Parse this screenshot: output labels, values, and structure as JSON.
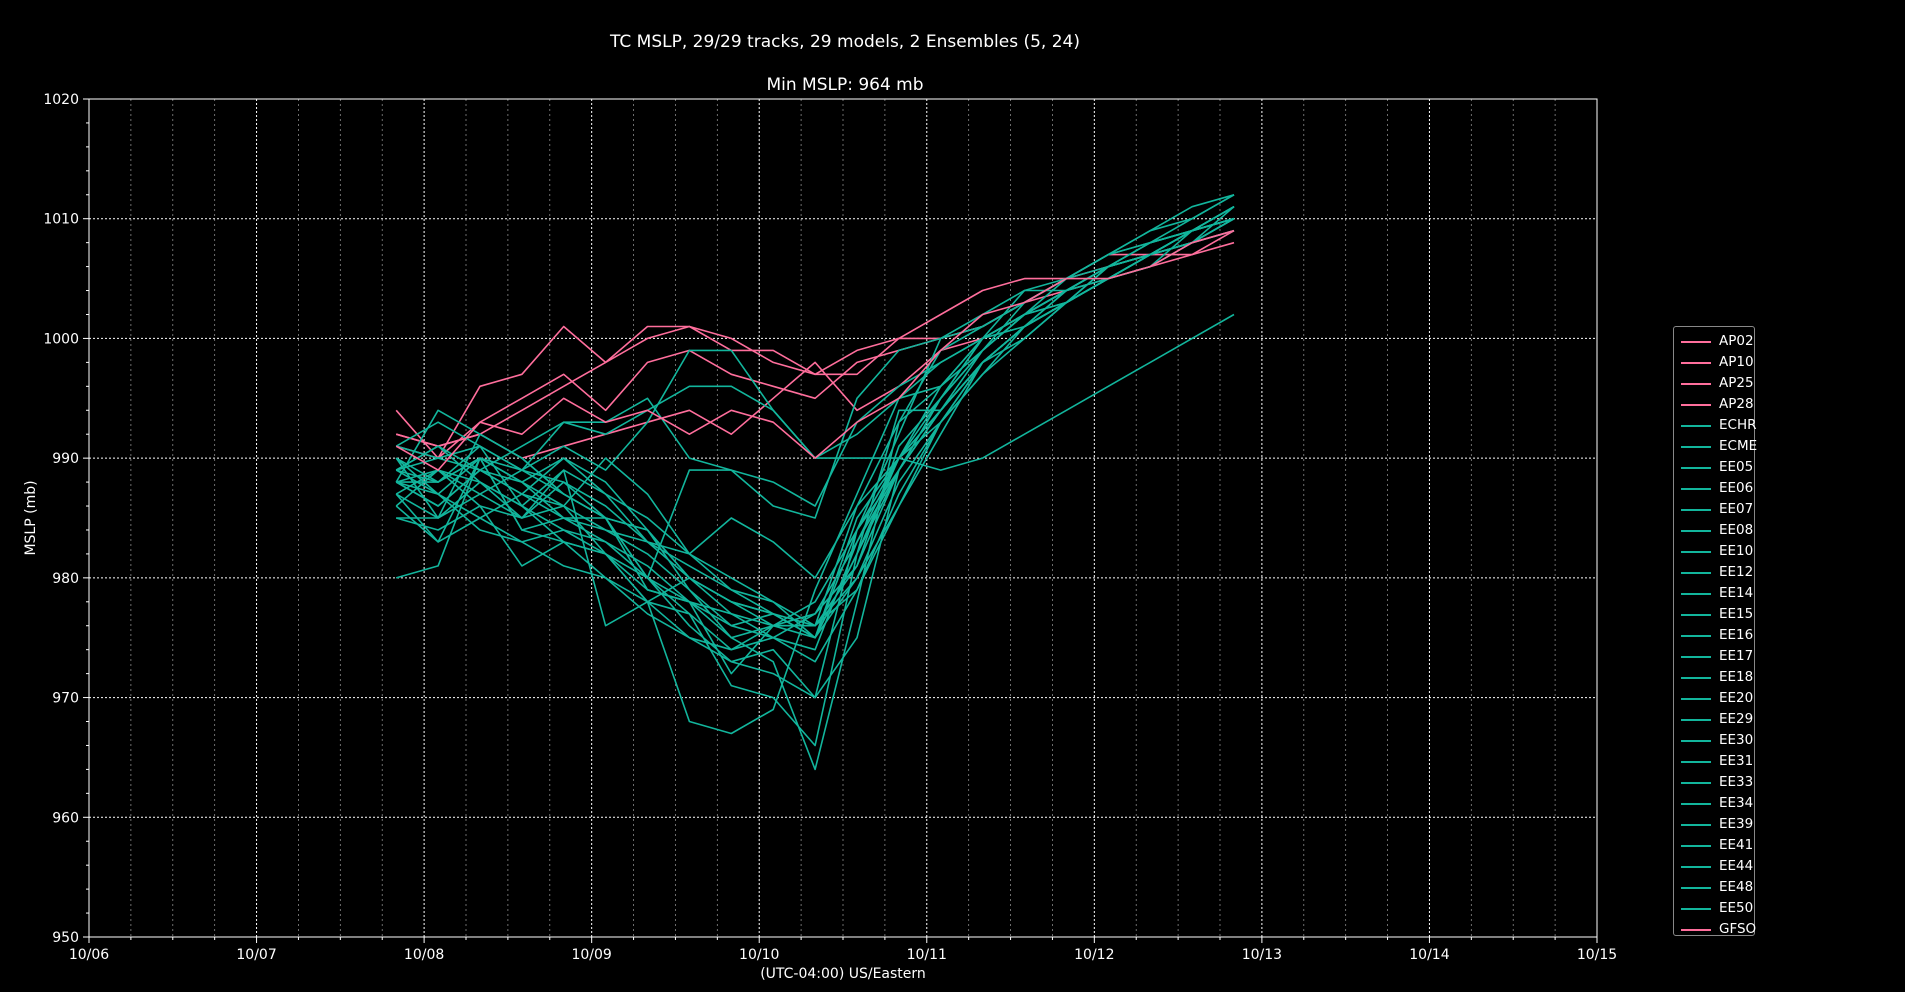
{
  "chart_data": {
    "type": "line",
    "title": "TC MSLP, 29/29 tracks, 29 models, 2 Ensembles (5, 24)",
    "subtitle": "Min MSLP: 964 mb",
    "xlabel": "(UTC-04:00) US/Eastern",
    "ylabel": "MSLP (mb)",
    "xlim": [
      "10/06",
      "10/15"
    ],
    "xticks": [
      "10/06",
      "10/07",
      "10/08",
      "10/09",
      "10/10",
      "10/11",
      "10/12",
      "10/13",
      "10/14",
      "10/15"
    ],
    "ylim": [
      950,
      1020
    ],
    "yticks": [
      950,
      960,
      970,
      980,
      990,
      1000,
      1010,
      1020
    ],
    "grid": true,
    "legend_position": "right",
    "colors": {
      "ap_gfs": "#ff6e9c",
      "ecmwf": "#12b59c",
      "background": "#000000",
      "foreground": "#ffffff"
    },
    "x_step_hours": 6,
    "series": [
      {
        "name": "AP02",
        "color": "#ff6e9c",
        "start": "10/07 20:00",
        "values": [
          992,
          991,
          992,
          994,
          996,
          998,
          1000,
          1001,
          1000,
          998,
          997,
          999,
          1000,
          1002,
          1004,
          1005,
          1005,
          1007,
          1007,
          1008,
          1010
        ]
      },
      {
        "name": "AP10",
        "color": "#ff6e9c",
        "start": "10/07 20:00",
        "values": [
          991,
          990,
          993,
          995,
          997,
          994,
          998,
          999,
          997,
          996,
          995,
          998,
          999,
          1000,
          1001,
          1003,
          1004,
          1006,
          1007,
          1008,
          1009
        ]
      },
      {
        "name": "AP25",
        "color": "#ff6e9c",
        "start": "10/07 20:00",
        "values": [
          992,
          991,
          992,
          990,
          991,
          992,
          993,
          994,
          992,
          995,
          998,
          994,
          996,
          999,
          1000,
          1002,
          1004,
          1005,
          1006,
          1007,
          1008
        ]
      },
      {
        "name": "AP28",
        "color": "#ff6e9c",
        "start": "10/07 20:00",
        "values": [
          994,
          990,
          996,
          997,
          1001,
          998,
          1001,
          1001,
          999,
          999,
          997,
          997,
          1000,
          1000,
          1001,
          1003,
          1005,
          1006,
          1007,
          1007,
          1009
        ]
      },
      {
        "name": "ECHR",
        "color": "#12b59c",
        "start": "10/07 20:00",
        "values": [
          988,
          994,
          992,
          990,
          987,
          985,
          980,
          978,
          972,
          976,
          975,
          984,
          992,
          1000,
          1002,
          1004,
          1005,
          1006,
          1008,
          1009,
          1011
        ]
      },
      {
        "name": "ECME",
        "color": "#12b59c",
        "start": "10/07 20:00",
        "values": [
          989,
          988,
          990,
          988,
          985,
          985,
          984,
          980,
          978,
          976,
          976,
          986,
          993,
          999,
          1001,
          1003,
          1005,
          1007,
          1008,
          1009,
          1010
        ]
      },
      {
        "name": "EE05",
        "color": "#12b59c",
        "start": "10/07 20:00",
        "values": [
          987,
          985,
          988,
          986,
          984,
          983,
          980,
          976,
          973,
          972,
          970,
          975,
          989,
          995,
          1000,
          1002,
          1003,
          1006,
          1007,
          1008,
          1011
        ]
      },
      {
        "name": "EE06",
        "color": "#12b59c",
        "start": "10/07 20:00",
        "values": [
          991,
          993,
          991,
          989,
          988,
          985,
          979,
          978,
          975,
          973,
          964,
          978,
          993,
          996,
          1000,
          1004,
          1004,
          1006,
          1008,
          1010,
          1012
        ]
      },
      {
        "name": "EE07",
        "color": "#12b59c",
        "start": "10/07 20:00",
        "values": [
          988,
          989,
          987,
          985,
          986,
          982,
          978,
          977,
          971,
          970,
          966,
          982,
          994,
          994,
          999,
          1003,
          1005,
          1007,
          1009,
          1010,
          1012
        ]
      },
      {
        "name": "EE08",
        "color": "#12b59c",
        "start": "10/07 20:00",
        "values": [
          990,
          987,
          984,
          983,
          981,
          980,
          978,
          968,
          967,
          969,
          979,
          987,
          995,
          996,
          1000,
          1002,
          1005,
          1007,
          1009,
          1011,
          1012
        ]
      },
      {
        "name": "EE10",
        "color": "#12b59c",
        "start": "10/07 20:00",
        "values": [
          989,
          990,
          991,
          986,
          983,
          980,
          977,
          975,
          973,
          974,
          970,
          984,
          990,
          993,
          997,
          1001,
          1004,
          1005,
          1007,
          1009,
          1010
        ]
      },
      {
        "name": "EE12",
        "color": "#12b59c",
        "start": "10/07 20:00",
        "values": [
          986,
          983,
          985,
          987,
          985,
          984,
          982,
          979,
          976,
          977,
          975,
          980,
          988,
          993,
          998,
          1001,
          1003,
          1005,
          1006,
          1008,
          1009
        ]
      },
      {
        "name": "EE14",
        "color": "#12b59c",
        "start": "10/07 20:00",
        "values": [
          985,
          984,
          986,
          981,
          983,
          982,
          979,
          978,
          976,
          975,
          977,
          981,
          991,
          995,
          999,
          1002,
          1004,
          1005,
          1007,
          1008,
          1010
        ]
      },
      {
        "name": "EE15",
        "color": "#12b59c",
        "start": "10/07 20:00",
        "values": [
          987,
          983,
          990,
          984,
          985,
          983,
          981,
          978,
          977,
          975,
          974,
          983,
          989,
          994,
          998,
          1001,
          1003,
          1006,
          1007,
          1009,
          1011
        ]
      },
      {
        "name": "EE16",
        "color": "#12b59c",
        "start": "10/07 20:00",
        "values": [
          988,
          986,
          989,
          987,
          990,
          988,
          984,
          979,
          975,
          976,
          976,
          979,
          986,
          992,
          998,
          1000,
          1003,
          1005,
          1006,
          1009,
          1010
        ]
      },
      {
        "name": "EE17",
        "color": "#12b59c",
        "start": "10/07 20:00",
        "values": [
          990,
          985,
          992,
          990,
          987,
          985,
          980,
          977,
          974,
          976,
          978,
          984,
          989,
          995,
          1000,
          1002,
          1004,
          1006,
          1007,
          1009,
          1011
        ]
      },
      {
        "name": "EE18",
        "color": "#12b59c",
        "start": "10/07 20:00",
        "values": [
          986,
          989,
          988,
          985,
          989,
          976,
          978,
          980,
          978,
          977,
          975,
          982,
          990,
          994,
          998,
          1001,
          1004,
          1006,
          1007,
          1009,
          1011
        ]
      },
      {
        "name": "EE20",
        "color": "#12b59c",
        "start": "10/07 20:00",
        "values": [
          989,
          991,
          989,
          988,
          990,
          987,
          985,
          982,
          979,
          978,
          975,
          985,
          990,
          996,
          999,
          1002,
          1004,
          1006,
          1007,
          1009,
          1010
        ]
      },
      {
        "name": "EE29",
        "color": "#12b59c",
        "start": "10/07 20:00",
        "values": [
          988,
          987,
          990,
          988,
          986,
          984,
          983,
          981,
          979,
          977,
          976,
          980,
          986,
          993,
          998,
          1001,
          1003,
          1005,
          1007,
          1008,
          1010
        ]
      },
      {
        "name": "EE30",
        "color": "#12b59c",
        "start": "10/07 20:00",
        "values": [
          991,
          990,
          989,
          991,
          993,
          992,
          994,
          996,
          996,
          994,
          990,
          990,
          990,
          989,
          990,
          992,
          994,
          996,
          998,
          1000,
          1002
        ]
      },
      {
        "name": "EE31",
        "color": "#12b59c",
        "start": "10/07 20:00",
        "values": [
          980,
          981,
          990,
          984,
          983,
          982,
          980,
          989,
          989,
          986,
          985,
          995,
          999,
          1000,
          1001,
          1003,
          1005,
          1007,
          1008,
          1009,
          1010
        ]
      },
      {
        "name": "EE33",
        "color": "#12b59c",
        "start": "10/07 20:00",
        "values": [
          989,
          991,
          988,
          986,
          989,
          987,
          983,
          982,
          980,
          978,
          976,
          981,
          989,
          994,
          998,
          1001,
          1003,
          1005,
          1007,
          1008,
          1010
        ]
      },
      {
        "name": "EE34",
        "color": "#12b59c",
        "start": "10/07 20:00",
        "values": [
          985,
          985,
          987,
          989,
          993,
          993,
          995,
          990,
          989,
          988,
          986,
          993,
          996,
          998,
          1000,
          1002,
          1003,
          1005,
          1007,
          1009,
          1010
        ]
      },
      {
        "name": "EE39",
        "color": "#12b59c",
        "start": "10/07 20:00",
        "values": [
          988,
          988,
          990,
          989,
          991,
          989,
          993,
          999,
          999,
          994,
          990,
          992,
          995,
          998,
          1000,
          1001,
          1003,
          1005,
          1007,
          1009,
          1010
        ]
      },
      {
        "name": "EE41",
        "color": "#12b59c",
        "start": "10/07 20:00",
        "values": [
          987,
          989,
          986,
          985,
          988,
          986,
          983,
          980,
          978,
          977,
          975,
          982,
          989,
          994,
          998,
          1001,
          1003,
          1005,
          1007,
          1009,
          1011
        ]
      },
      {
        "name": "EE44",
        "color": "#12b59c",
        "start": "10/07 20:00",
        "values": [
          989,
          987,
          985,
          983,
          984,
          982,
          978,
          975,
          974,
          975,
          973,
          979,
          987,
          993,
          997,
          1000,
          1003,
          1005,
          1007,
          1008,
          1010
        ]
      },
      {
        "name": "EE48",
        "color": "#12b59c",
        "start": "10/07 20:00",
        "values": [
          988,
          986,
          989,
          987,
          986,
          990,
          987,
          982,
          985,
          983,
          980,
          986,
          990,
          994,
          998,
          1001,
          1003,
          1005,
          1007,
          1009,
          1011
        ]
      },
      {
        "name": "EE50",
        "color": "#12b59c",
        "start": "10/07 20:00",
        "values": [
          990,
          988,
          991,
          989,
          987,
          985,
          984,
          980,
          977,
          976,
          977,
          983,
          990,
          995,
          999,
          1002,
          1004,
          1006,
          1008,
          1009,
          1011
        ]
      },
      {
        "name": "GFSO",
        "color": "#ff6e9c",
        "start": "10/07 20:00",
        "values": [
          991,
          989,
          993,
          992,
          995,
          993,
          994,
          992,
          994,
          993,
          990,
          993,
          995,
          999,
          1002,
          1003,
          1005,
          1005,
          1006,
          1008,
          1009
        ]
      }
    ]
  }
}
